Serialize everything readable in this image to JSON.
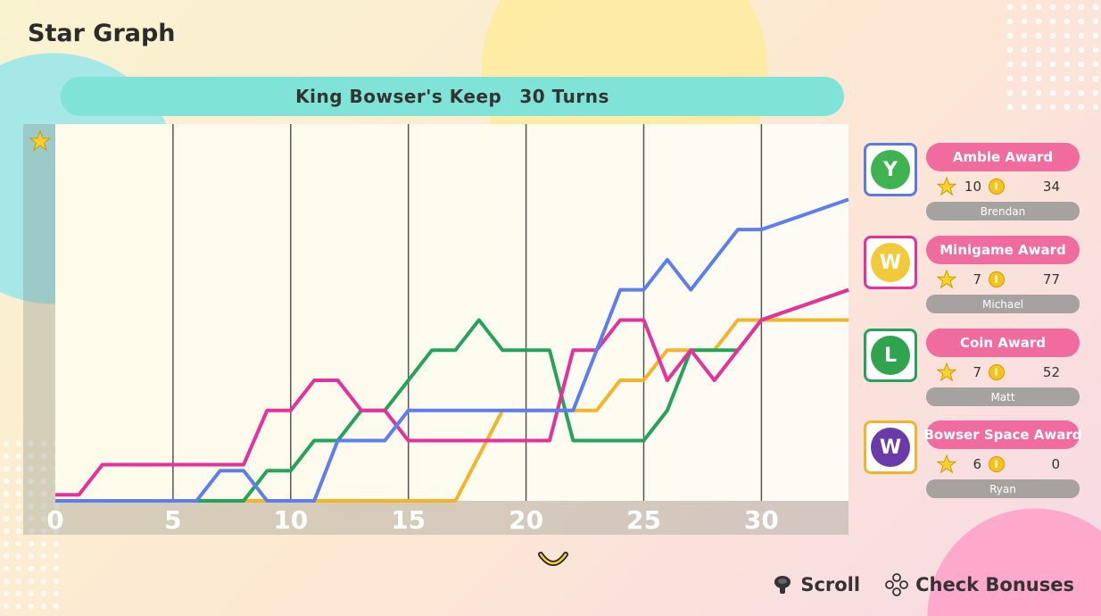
{
  "title": "Star Graph",
  "banner": {
    "board": "King Bowser's Keep",
    "turns": "30 Turns"
  },
  "colors": {
    "blue": "#5b7ff0",
    "green": "#24a35a",
    "pink": "#e6309b",
    "orange": "#f2b429"
  },
  "chart_data": {
    "type": "line",
    "x_ticks": [
      "0",
      "5",
      "10",
      "15",
      "20",
      "25",
      "30"
    ],
    "xlim": [
      0,
      33.7
    ],
    "ylim": [
      0,
      12.5
    ],
    "ylabel_icon": "star-icon",
    "grid": "vertical",
    "series": [
      {
        "color": "#f2b429",
        "points": [
          [
            0,
            0
          ],
          [
            17,
            0
          ],
          [
            19,
            3
          ],
          [
            23,
            3
          ],
          [
            24,
            4
          ],
          [
            25,
            4
          ],
          [
            26,
            5
          ],
          [
            28,
            5
          ],
          [
            29,
            6
          ],
          [
            30,
            6
          ],
          [
            33.7,
            6
          ]
        ]
      },
      {
        "color": "#24a35a",
        "points": [
          [
            0,
            0
          ],
          [
            8,
            0
          ],
          [
            9,
            1
          ],
          [
            10,
            1
          ],
          [
            11,
            2
          ],
          [
            12,
            2
          ],
          [
            13,
            3
          ],
          [
            14,
            3
          ],
          [
            15,
            4
          ],
          [
            16,
            5
          ],
          [
            17,
            5
          ],
          [
            18,
            6
          ],
          [
            19,
            5
          ],
          [
            21,
            5
          ],
          [
            22,
            2
          ],
          [
            25,
            2
          ],
          [
            26,
            3
          ],
          [
            27,
            5
          ],
          [
            29,
            5
          ],
          [
            30,
            6
          ],
          [
            33.7,
            7
          ]
        ]
      },
      {
        "color": "#e6309b",
        "points": [
          [
            0,
            0.2
          ],
          [
            1,
            0.2
          ],
          [
            2,
            1.2
          ],
          [
            7,
            1.2
          ],
          [
            8,
            1.2
          ],
          [
            9,
            3
          ],
          [
            10,
            3
          ],
          [
            11,
            4
          ],
          [
            12,
            4
          ],
          [
            13,
            3
          ],
          [
            14,
            3
          ],
          [
            15,
            2
          ],
          [
            21,
            2
          ],
          [
            22,
            5
          ],
          [
            23,
            5
          ],
          [
            24,
            6
          ],
          [
            25,
            6
          ],
          [
            26,
            4
          ],
          [
            27,
            5
          ],
          [
            28,
            4
          ],
          [
            29,
            5
          ],
          [
            30,
            6
          ],
          [
            33.7,
            7
          ]
        ]
      },
      {
        "color": "#5b7ff0",
        "points": [
          [
            0,
            0
          ],
          [
            6,
            0
          ],
          [
            7,
            1
          ],
          [
            8,
            1
          ],
          [
            9,
            0
          ],
          [
            11,
            0
          ],
          [
            12,
            2
          ],
          [
            14,
            2
          ],
          [
            15,
            3
          ],
          [
            22,
            3
          ],
          [
            24,
            7
          ],
          [
            25,
            7
          ],
          [
            26,
            8
          ],
          [
            27,
            7
          ],
          [
            29,
            9
          ],
          [
            30,
            9
          ],
          [
            33.7,
            10
          ]
        ]
      }
    ]
  },
  "awards": [
    {
      "title": "Amble Award",
      "stars": "10",
      "coins": "34",
      "name": "Brendan",
      "character_icon": "yoshi-icon",
      "frame_color": "#5a7be0",
      "face_color": "#3fb34f",
      "initial": "Y"
    },
    {
      "title": "Minigame Award",
      "stars": "7",
      "coins": "77",
      "name": "Michael",
      "character_icon": "wario-icon",
      "frame_color": "#e6309b",
      "face_color": "#f2c93a",
      "initial": "W"
    },
    {
      "title": "Coin Award",
      "stars": "7",
      "coins": "52",
      "name": "Matt",
      "character_icon": "luigi-icon",
      "frame_color": "#24a35a",
      "face_color": "#2fa34d",
      "initial": "L"
    },
    {
      "title": "Bowser Space Award",
      "stars": "6",
      "coins": "0",
      "name": "Ryan",
      "character_icon": "waluigi-icon",
      "frame_color": "#f2b429",
      "face_color": "#6a3aa8",
      "initial": "W"
    }
  ],
  "footer": {
    "scroll_label": "Scroll",
    "bonuses_label": "Check Bonuses"
  }
}
